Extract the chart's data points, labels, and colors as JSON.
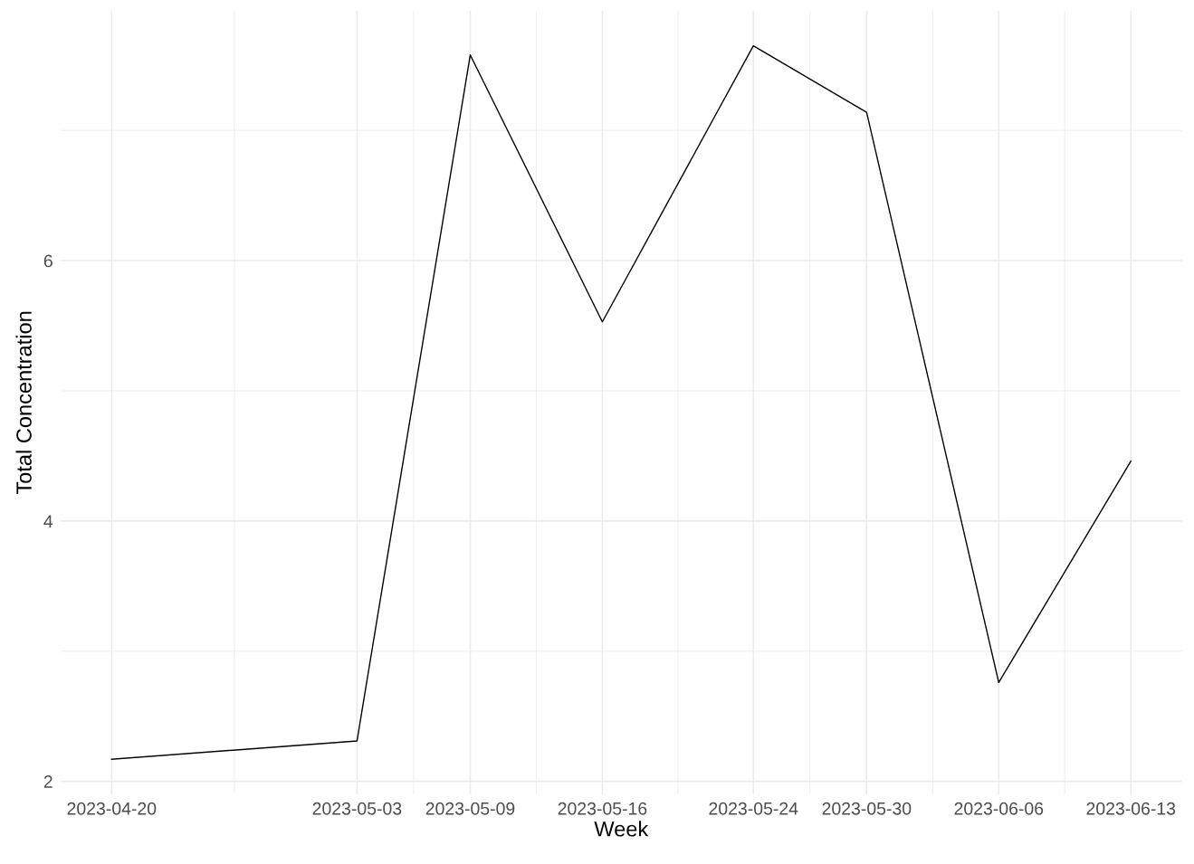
{
  "chart_data": {
    "type": "line",
    "xlabel": "Week",
    "ylabel": "Total Concentration",
    "x": [
      "2023-04-20",
      "2023-05-03",
      "2023-05-09",
      "2023-05-16",
      "2023-05-24",
      "2023-05-30",
      "2023-06-06",
      "2023-06-13"
    ],
    "series": [
      {
        "color": "#000000",
        "values": [
          2.17,
          2.31,
          7.58,
          5.53,
          7.65,
          7.14,
          2.76,
          4.46
        ]
      }
    ],
    "xlim": [
      "2023-04-17T07:12",
      "2023-06-15T16:48"
    ],
    "xticks": [
      "2023-04-20",
      "2023-05-03",
      "2023-05-09",
      "2023-05-16",
      "2023-05-24",
      "2023-05-30",
      "2023-06-06",
      "2023-06-13"
    ],
    "ylim": [
      1.9,
      7.92
    ],
    "yticks": [
      2,
      4,
      6
    ],
    "grid": true,
    "legend": false,
    "marker": "none",
    "line_style": "solid"
  }
}
